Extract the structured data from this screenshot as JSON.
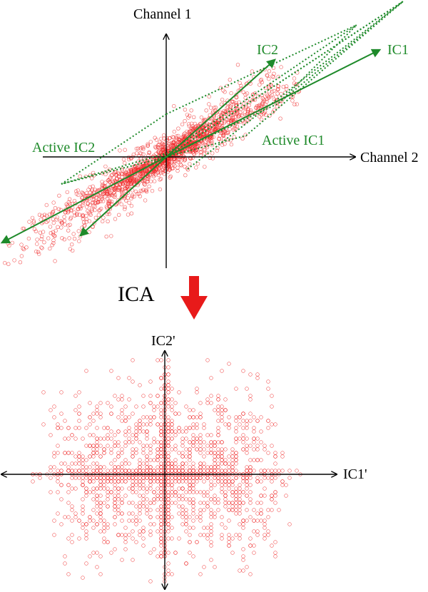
{
  "colors": {
    "points": "#ef2a2a",
    "vectors": "#1e8a2a",
    "axes": "#000000",
    "arrow": "#e81a1a"
  },
  "top_panel": {
    "y_axis_label": "Channel 1",
    "x_axis_label": "Channel 2",
    "ic1_label": "IC1",
    "ic2_label": "IC2",
    "active_ic1_label": "Active IC1",
    "active_ic2_label": "Active IC2"
  },
  "transform": {
    "label": "ICA"
  },
  "bottom_panel": {
    "x_axis_label": "IC1'",
    "y_axis_label": "IC2'"
  }
}
